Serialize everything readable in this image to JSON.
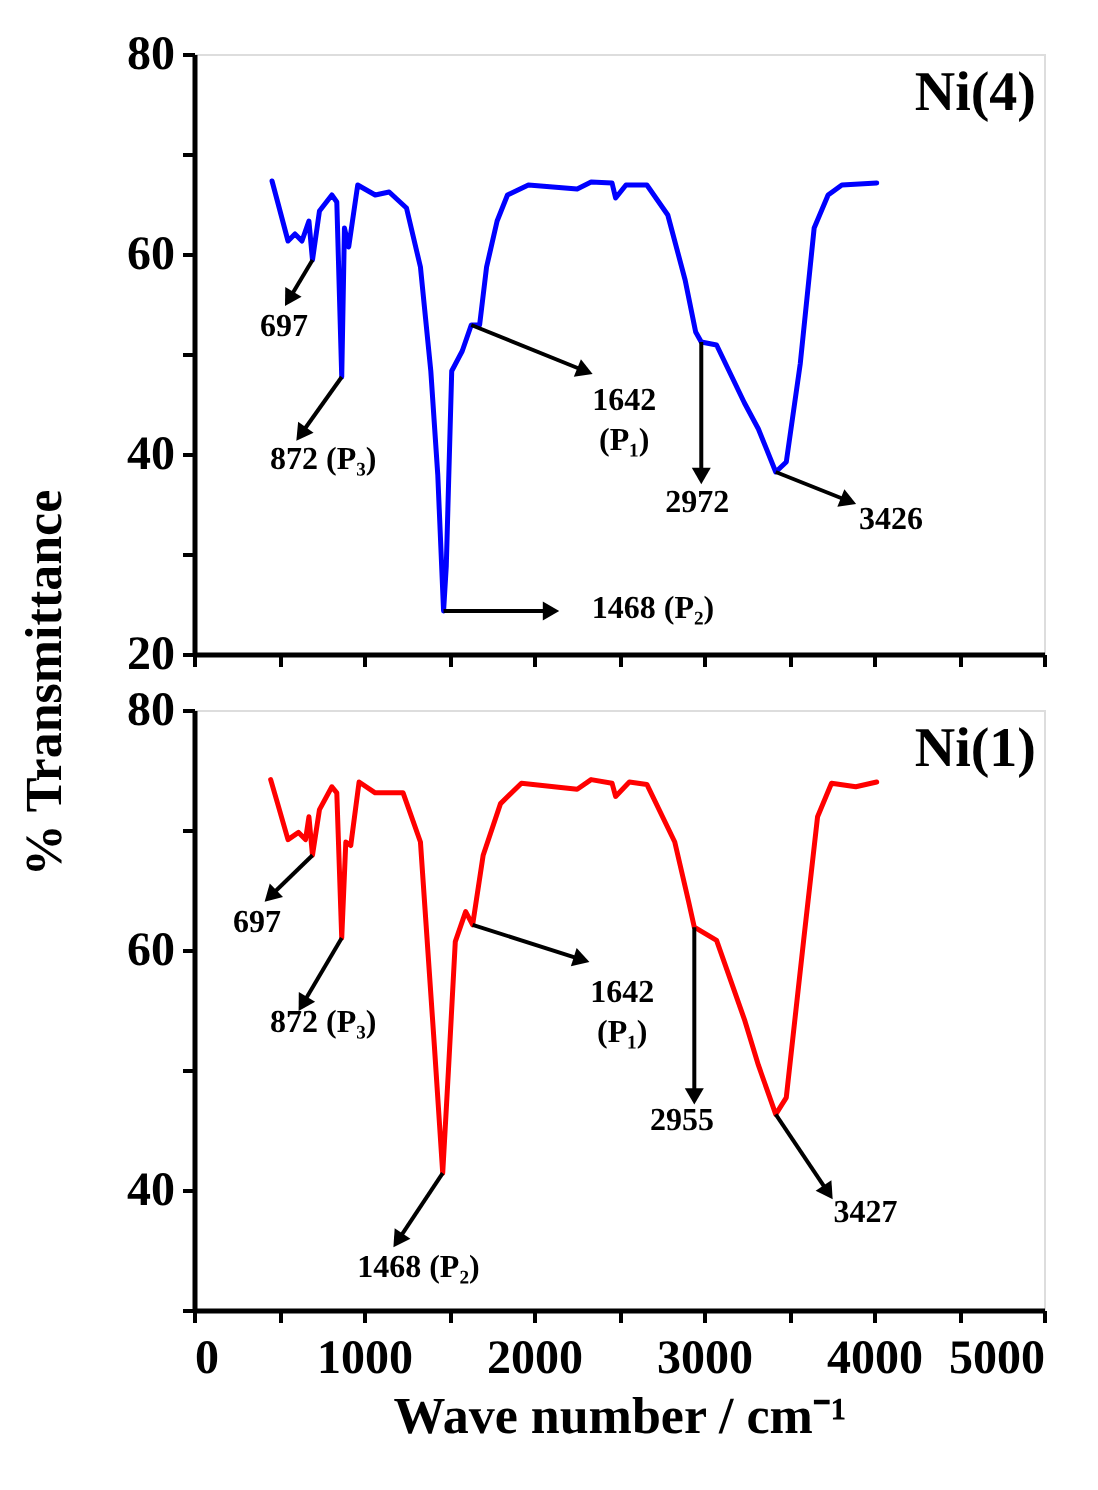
{
  "chart_data": [
    {
      "type": "line",
      "ylabel": "% Transmittance",
      "xlim": [
        0,
        5000
      ],
      "ylim": [
        20,
        80
      ],
      "xticks": [
        0,
        {
          "value": 500,
          "label": null
        },
        1000,
        {
          "value": 1500,
          "label": null
        },
        2000,
        {
          "value": 2500,
          "label": null
        },
        3000,
        {
          "value": 3500,
          "label": null
        },
        4000,
        {
          "value": 4500,
          "label": null
        },
        5000
      ],
      "yticks": [
        20,
        {
          "value": 30,
          "label": null
        },
        40,
        {
          "value": 50,
          "label": null
        },
        60,
        {
          "value": 70,
          "label": null
        },
        80
      ],
      "tick_labels": "y",
      "grid": false,
      "series": [
        {
          "name": "Ni(4)",
          "color": "#0000ff",
          "x": [
            459,
            492,
            553,
            594,
            635,
            676,
            697,
            738,
            811,
            840,
            869,
            885,
            910,
            963,
            1004,
            1066,
            1148,
            1250,
            1332,
            1393,
            1434,
            1468,
            1484,
            1516,
            1578,
            1631,
            1680,
            1721,
            1783,
            1844,
            1967,
            2254,
            2336,
            2459,
            2480,
            2541,
            2664,
            2787,
            2889,
            2951,
            2984,
            3074,
            3238,
            3320,
            3422,
            3484,
            3566,
            3648,
            3730,
            3811,
            4016
          ],
          "values": [
            67.3,
            65.2,
            61.3,
            62.0,
            61.3,
            63.3,
            59.4,
            64.3,
            65.9,
            65.2,
            47.7,
            62.6,
            60.7,
            66.9,
            66.5,
            65.9,
            66.2,
            64.6,
            58.7,
            48.3,
            37.9,
            24.3,
            28.8,
            48.3,
            50.3,
            52.9,
            52.9,
            58.7,
            63.3,
            65.9,
            66.9,
            66.5,
            67.2,
            67.1,
            65.6,
            66.9,
            66.9,
            63.9,
            57.4,
            52.2,
            51.2,
            50.9,
            45.1,
            42.5,
            38.2,
            39.2,
            49.0,
            62.6,
            65.9,
            66.9,
            67.1
          ]
        }
      ],
      "annotations": [
        {
          "text": "697",
          "x": 697,
          "y": 59.4
        },
        {
          "text": "872 (P₃)",
          "x": 869,
          "y": 47.7
        },
        {
          "text": "1468 (P₂)",
          "x": 1468,
          "y": 24.3
        },
        {
          "text": "1642 (P₁)",
          "x": 1631,
          "y": 52.9
        },
        {
          "text": "2972",
          "x": 2984,
          "y": 51.2
        },
        {
          "text": "3426",
          "x": 3422,
          "y": 38.2
        }
      ]
    },
    {
      "type": "line",
      "xlabel": "Wave number / cm⁻¹",
      "xlim": [
        0,
        5000
      ],
      "ylim": [
        30,
        80
      ],
      "xticks": [
        0,
        {
          "value": 500,
          "label": null
        },
        1000,
        {
          "value": 1500,
          "label": null
        },
        2000,
        {
          "value": 2500,
          "label": null
        },
        3000,
        {
          "value": 3500,
          "label": null
        },
        4000,
        {
          "value": 4500,
          "label": null
        },
        5000
      ],
      "yticks": [
        {
          "value": 30,
          "label": null
        },
        40,
        {
          "value": 50,
          "label": null
        },
        60,
        {
          "value": 70,
          "label": null
        },
        80
      ],
      "grid": false,
      "series": [
        {
          "name": "Ni(1)",
          "color": "#ff0000",
          "x": [
            451,
            492,
            553,
            615,
            656,
            676,
            697,
            738,
            811,
            840,
            869,
            893,
            922,
            971,
            1066,
            1230,
            1332,
            1414,
            1463,
            1496,
            1537,
            1598,
            1639,
            1701,
            1803,
            1926,
            2254,
            2336,
            2459,
            2480,
            2561,
            2664,
            2828,
            2910,
            2943,
            3074,
            3238,
            3320,
            3422,
            3484,
            3586,
            3668,
            3750,
            3893,
            4016
          ],
          "values": [
            74.2,
            72.2,
            69.2,
            69.8,
            69.2,
            71.1,
            67.9,
            71.7,
            73.6,
            73.1,
            61.0,
            69.0,
            68.7,
            74.0,
            73.1,
            73.1,
            69.0,
            52.0,
            41.4,
            49.8,
            60.7,
            63.2,
            62.1,
            67.9,
            72.2,
            73.9,
            73.4,
            74.2,
            73.9,
            72.8,
            74.0,
            73.8,
            69.0,
            64.0,
            61.9,
            60.8,
            54.2,
            50.4,
            46.3,
            47.7,
            60.8,
            71.1,
            73.9,
            73.6,
            74.0
          ]
        }
      ],
      "annotations": [
        {
          "text": "697",
          "x": 697,
          "y": 67.9
        },
        {
          "text": "872 (P₃)",
          "x": 869,
          "y": 61.0
        },
        {
          "text": "1468 (P₂)",
          "x": 1463,
          "y": 41.4
        },
        {
          "text": "1642 (P₁)",
          "x": 1639,
          "y": 62.1
        },
        {
          "text": "2955",
          "x": 2943,
          "y": 61.9
        },
        {
          "text": "3427",
          "x": 3422,
          "y": 46.3
        }
      ]
    }
  ]
}
